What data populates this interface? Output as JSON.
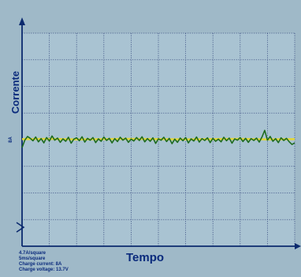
{
  "chart_data": {
    "type": "line",
    "title": "",
    "xlabel": "Tempo",
    "ylabel": "Corrente",
    "ytick_label": "8A",
    "grid": true,
    "grid_divisions": {
      "x": 10,
      "y": 8
    },
    "xlim": [
      0,
      10
    ],
    "ylim": [
      -4,
      4
    ],
    "annotations": [
      "4.7A/square",
      "5ms/square",
      "Charge current: 8A",
      "Charge voltage: 13.7V"
    ],
    "series": [
      {
        "color": "#1e6b1e",
        "x": [
          0,
          0.1,
          0.2,
          0.3,
          0.4,
          0.5,
          0.6,
          0.7,
          0.8,
          0.9,
          1.0,
          1.1,
          1.2,
          1.3,
          1.4,
          1.5,
          1.6,
          1.7,
          1.8,
          1.9,
          2.0,
          2.1,
          2.2,
          2.3,
          2.4,
          2.5,
          2.6,
          2.7,
          2.8,
          2.9,
          3.0,
          3.1,
          3.2,
          3.3,
          3.4,
          3.5,
          3.6,
          3.7,
          3.8,
          3.9,
          4.0,
          4.1,
          4.2,
          4.3,
          4.4,
          4.5,
          4.6,
          4.7,
          4.8,
          4.9,
          5.0,
          5.1,
          5.2,
          5.3,
          5.4,
          5.5,
          5.6,
          5.7,
          5.8,
          5.9,
          6.0,
          6.1,
          6.2,
          6.3,
          6.4,
          6.5,
          6.6,
          6.7,
          6.8,
          6.9,
          7.0,
          7.1,
          7.2,
          7.3,
          7.4,
          7.5,
          7.6,
          7.7,
          7.8,
          7.9,
          8.0,
          8.1,
          8.2,
          8.3,
          8.4,
          8.5,
          8.6,
          8.7,
          8.8,
          8.9,
          9.0,
          9.1,
          9.2,
          9.3,
          9.4,
          9.5,
          9.6,
          9.7,
          9.8,
          9.9,
          10.0
        ],
        "y": [
          -0.3,
          -0.02,
          0.12,
          0.05,
          -0.04,
          0.1,
          -0.08,
          0.04,
          -0.12,
          0.08,
          -0.05,
          0.14,
          -0.02,
          0.06,
          -0.1,
          0.03,
          -0.06,
          0.09,
          -0.13,
          0.02,
          0.07,
          -0.04,
          0.11,
          -0.09,
          0.05,
          -0.02,
          0.08,
          -0.11,
          0.03,
          -0.06,
          0.1,
          -0.03,
          0.05,
          -0.12,
          0.04,
          -0.07,
          0.09,
          -0.02,
          0.06,
          -0.1,
          0.02,
          -0.05,
          0.08,
          -0.03,
          0.11,
          -0.08,
          0.04,
          -0.06,
          0.07,
          -0.14,
          0.03,
          -0.02,
          0.09,
          -0.07,
          0.05,
          -0.15,
          0.02,
          -0.1,
          0.06,
          -0.04,
          0.08,
          -0.12,
          0.03,
          -0.05,
          0.1,
          -0.09,
          0.04,
          -0.03,
          0.07,
          -0.11,
          0.05,
          -0.06,
          0.02,
          -0.08,
          0.09,
          -0.04,
          0.06,
          -0.13,
          0.03,
          -0.02,
          0.08,
          -0.07,
          0.05,
          -0.1,
          0.04,
          -0.03,
          0.06,
          -0.09,
          0.1,
          0.35,
          -0.02,
          0.12,
          -0.06,
          0.04,
          -0.11,
          0.07,
          -0.03,
          0.05,
          -0.08,
          -0.18,
          -0.12
        ]
      },
      {
        "color": "#e2d63a",
        "x": [
          0,
          1,
          2,
          3,
          4,
          5,
          6,
          7,
          8,
          9,
          10
        ],
        "y": [
          0.02,
          0.03,
          0.01,
          0.02,
          0.03,
          0.02,
          0.01,
          0.02,
          0.03,
          0.01,
          0.02
        ]
      }
    ]
  }
}
